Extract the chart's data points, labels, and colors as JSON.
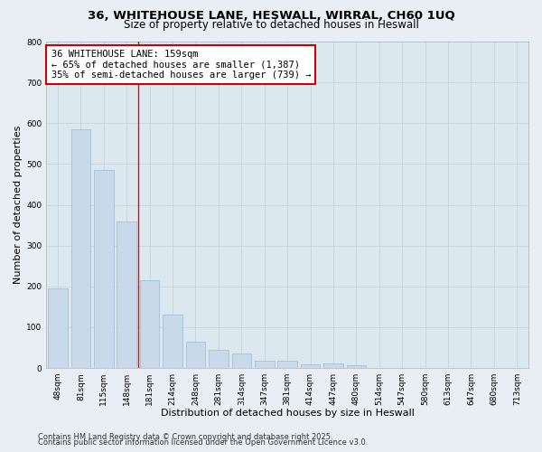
{
  "title_line1": "36, WHITEHOUSE LANE, HESWALL, WIRRAL, CH60 1UQ",
  "title_line2": "Size of property relative to detached houses in Heswall",
  "xlabel": "Distribution of detached houses by size in Heswall",
  "ylabel": "Number of detached properties",
  "bar_labels": [
    "48sqm",
    "81sqm",
    "115sqm",
    "148sqm",
    "181sqm",
    "214sqm",
    "248sqm",
    "281sqm",
    "314sqm",
    "347sqm",
    "381sqm",
    "414sqm",
    "447sqm",
    "480sqm",
    "514sqm",
    "547sqm",
    "580sqm",
    "613sqm",
    "647sqm",
    "680sqm",
    "713sqm"
  ],
  "bar_values": [
    195,
    585,
    485,
    360,
    215,
    130,
    65,
    45,
    35,
    17,
    17,
    10,
    12,
    6,
    0,
    0,
    0,
    0,
    0,
    0,
    0
  ],
  "bar_color": "#c8d9ea",
  "bar_edge_color": "#a8c0d6",
  "bar_linewidth": 0.6,
  "red_line_x": 3.5,
  "annotation_text": "36 WHITEHOUSE LANE: 159sqm\n← 65% of detached houses are smaller (1,387)\n35% of semi-detached houses are larger (739) →",
  "annotation_box_color": "#ffffff",
  "annotation_box_edge": "#cc0000",
  "ylim": [
    0,
    800
  ],
  "yticks": [
    0,
    100,
    200,
    300,
    400,
    500,
    600,
    700,
    800
  ],
  "grid_color": "#c8d4de",
  "plot_bg_color": "#dce8f0",
  "fig_bg_color": "#e8eef4",
  "footer_line1": "Contains HM Land Registry data © Crown copyright and database right 2025.",
  "footer_line2": "Contains public sector information licensed under the Open Government Licence v3.0.",
  "title_fontsize": 9.5,
  "subtitle_fontsize": 8.5,
  "axis_label_fontsize": 8,
  "tick_fontsize": 6.5,
  "annotation_fontsize": 7.5,
  "footer_fontsize": 6.0
}
